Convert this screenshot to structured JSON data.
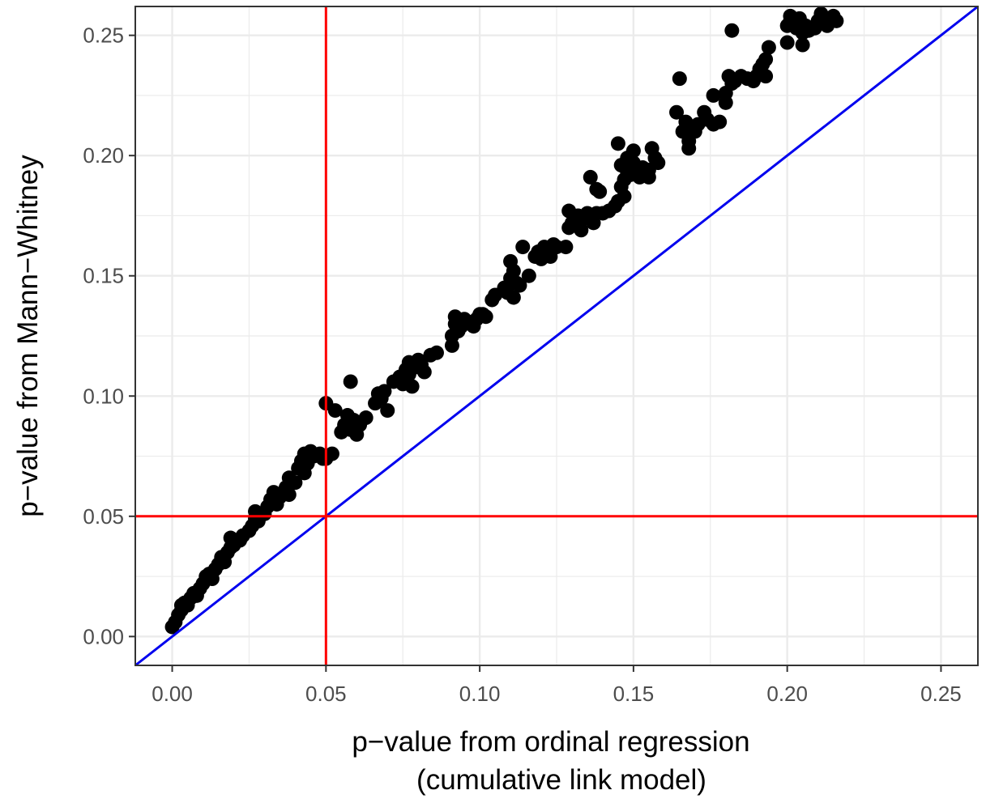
{
  "chart_data": {
    "type": "scatter",
    "title": "",
    "xlabel": "p−value from ordinal regression",
    "xlabel_line2": "(cumulative link model)",
    "ylabel": "p−value from Mann−Whitney",
    "xlim": [
      -0.012,
      0.262
    ],
    "ylim": [
      -0.012,
      0.262
    ],
    "xticks": [
      0.0,
      0.05,
      0.1,
      0.15,
      0.2,
      0.25
    ],
    "yticks": [
      0.0,
      0.05,
      0.1,
      0.15,
      0.2,
      0.25
    ],
    "xtick_labels": [
      "0.00",
      "0.05",
      "0.10",
      "0.15",
      "0.20",
      "0.25"
    ],
    "ytick_labels": [
      "0.00",
      "0.05",
      "0.10",
      "0.15",
      "0.20",
      "0.25"
    ],
    "grid": true,
    "reference_lines": {
      "vertical_x": 0.05,
      "horizontal_y": 0.05,
      "identity": true,
      "threshold_color": "#ff0000",
      "identity_color": "#0000ee"
    },
    "point_color": "#000000",
    "points": [
      [
        0.0,
        0.004
      ],
      [
        0.001,
        0.006
      ],
      [
        0.002,
        0.009
      ],
      [
        0.003,
        0.011
      ],
      [
        0.003,
        0.013
      ],
      [
        0.004,
        0.014
      ],
      [
        0.005,
        0.013
      ],
      [
        0.006,
        0.016
      ],
      [
        0.007,
        0.018
      ],
      [
        0.008,
        0.017
      ],
      [
        0.009,
        0.02
      ],
      [
        0.01,
        0.022
      ],
      [
        0.011,
        0.025
      ],
      [
        0.012,
        0.026
      ],
      [
        0.013,
        0.024
      ],
      [
        0.014,
        0.028
      ],
      [
        0.015,
        0.03
      ],
      [
        0.016,
        0.033
      ],
      [
        0.017,
        0.031
      ],
      [
        0.018,
        0.035
      ],
      [
        0.019,
        0.037
      ],
      [
        0.019,
        0.041
      ],
      [
        0.02,
        0.038
      ],
      [
        0.022,
        0.04
      ],
      [
        0.023,
        0.042
      ],
      [
        0.025,
        0.044
      ],
      [
        0.026,
        0.046
      ],
      [
        0.027,
        0.049
      ],
      [
        0.027,
        0.052
      ],
      [
        0.028,
        0.048
      ],
      [
        0.03,
        0.051
      ],
      [
        0.031,
        0.054
      ],
      [
        0.032,
        0.057
      ],
      [
        0.033,
        0.06
      ],
      [
        0.034,
        0.055
      ],
      [
        0.035,
        0.058
      ],
      [
        0.037,
        0.062
      ],
      [
        0.038,
        0.059
      ],
      [
        0.038,
        0.066
      ],
      [
        0.04,
        0.064
      ],
      [
        0.041,
        0.07
      ],
      [
        0.042,
        0.073
      ],
      [
        0.043,
        0.068
      ],
      [
        0.043,
        0.076
      ],
      [
        0.044,
        0.072
      ],
      [
        0.045,
        0.077
      ],
      [
        0.046,
        0.075
      ],
      [
        0.048,
        0.076
      ],
      [
        0.049,
        0.074
      ],
      [
        0.05,
        0.097
      ],
      [
        0.05,
        0.074
      ],
      [
        0.052,
        0.076
      ],
      [
        0.053,
        0.094
      ],
      [
        0.055,
        0.085
      ],
      [
        0.056,
        0.088
      ],
      [
        0.057,
        0.092
      ],
      [
        0.058,
        0.086
      ],
      [
        0.058,
        0.106
      ],
      [
        0.059,
        0.09
      ],
      [
        0.06,
        0.084
      ],
      [
        0.061,
        0.088
      ],
      [
        0.063,
        0.091
      ],
      [
        0.066,
        0.097
      ],
      [
        0.067,
        0.101
      ],
      [
        0.068,
        0.099
      ],
      [
        0.069,
        0.102
      ],
      [
        0.07,
        0.094
      ],
      [
        0.072,
        0.106
      ],
      [
        0.074,
        0.108
      ],
      [
        0.075,
        0.105
      ],
      [
        0.076,
        0.111
      ],
      [
        0.077,
        0.109
      ],
      [
        0.077,
        0.114
      ],
      [
        0.078,
        0.104
      ],
      [
        0.079,
        0.112
      ],
      [
        0.08,
        0.115
      ],
      [
        0.081,
        0.113
      ],
      [
        0.082,
        0.11
      ],
      [
        0.084,
        0.117
      ],
      [
        0.086,
        0.118
      ],
      [
        0.091,
        0.121
      ],
      [
        0.091,
        0.125
      ],
      [
        0.092,
        0.13
      ],
      [
        0.092,
        0.133
      ],
      [
        0.093,
        0.127
      ],
      [
        0.094,
        0.129
      ],
      [
        0.095,
        0.132
      ],
      [
        0.096,
        0.131
      ],
      [
        0.097,
        0.13
      ],
      [
        0.098,
        0.129
      ],
      [
        0.099,
        0.132
      ],
      [
        0.1,
        0.134
      ],
      [
        0.101,
        0.134
      ],
      [
        0.102,
        0.133
      ],
      [
        0.104,
        0.14
      ],
      [
        0.105,
        0.142
      ],
      [
        0.108,
        0.145
      ],
      [
        0.109,
        0.143
      ],
      [
        0.11,
        0.149
      ],
      [
        0.11,
        0.156
      ],
      [
        0.111,
        0.141
      ],
      [
        0.111,
        0.152
      ],
      [
        0.112,
        0.147
      ],
      [
        0.113,
        0.146
      ],
      [
        0.114,
        0.162
      ],
      [
        0.116,
        0.15
      ],
      [
        0.118,
        0.158
      ],
      [
        0.119,
        0.16
      ],
      [
        0.12,
        0.157
      ],
      [
        0.121,
        0.162
      ],
      [
        0.122,
        0.16
      ],
      [
        0.123,
        0.158
      ],
      [
        0.124,
        0.163
      ],
      [
        0.125,
        0.162
      ],
      [
        0.128,
        0.162
      ],
      [
        0.129,
        0.17
      ],
      [
        0.129,
        0.177
      ],
      [
        0.13,
        0.172
      ],
      [
        0.131,
        0.173
      ],
      [
        0.132,
        0.175
      ],
      [
        0.133,
        0.169
      ],
      [
        0.134,
        0.174
      ],
      [
        0.135,
        0.176
      ],
      [
        0.136,
        0.174
      ],
      [
        0.136,
        0.191
      ],
      [
        0.137,
        0.172
      ],
      [
        0.138,
        0.186
      ],
      [
        0.138,
        0.176
      ],
      [
        0.139,
        0.185
      ],
      [
        0.14,
        0.176
      ],
      [
        0.142,
        0.177
      ],
      [
        0.144,
        0.179
      ],
      [
        0.145,
        0.181
      ],
      [
        0.145,
        0.205
      ],
      [
        0.146,
        0.187
      ],
      [
        0.146,
        0.196
      ],
      [
        0.147,
        0.183
      ],
      [
        0.147,
        0.19
      ],
      [
        0.148,
        0.193
      ],
      [
        0.148,
        0.199
      ],
      [
        0.149,
        0.192
      ],
      [
        0.15,
        0.197
      ],
      [
        0.15,
        0.202
      ],
      [
        0.151,
        0.194
      ],
      [
        0.152,
        0.191
      ],
      [
        0.153,
        0.195
      ],
      [
        0.154,
        0.192
      ],
      [
        0.155,
        0.191
      ],
      [
        0.155,
        0.194
      ],
      [
        0.156,
        0.203
      ],
      [
        0.157,
        0.199
      ],
      [
        0.158,
        0.197
      ],
      [
        0.164,
        0.218
      ],
      [
        0.165,
        0.232
      ],
      [
        0.166,
        0.21
      ],
      [
        0.167,
        0.214
      ],
      [
        0.168,
        0.203
      ],
      [
        0.168,
        0.206
      ],
      [
        0.169,
        0.212
      ],
      [
        0.17,
        0.21
      ],
      [
        0.171,
        0.213
      ],
      [
        0.173,
        0.218
      ],
      [
        0.174,
        0.215
      ],
      [
        0.176,
        0.213
      ],
      [
        0.176,
        0.225
      ],
      [
        0.178,
        0.214
      ],
      [
        0.18,
        0.222
      ],
      [
        0.18,
        0.226
      ],
      [
        0.181,
        0.233
      ],
      [
        0.182,
        0.23
      ],
      [
        0.182,
        0.252
      ],
      [
        0.183,
        0.231
      ],
      [
        0.185,
        0.233
      ],
      [
        0.187,
        0.232
      ],
      [
        0.189,
        0.231
      ],
      [
        0.19,
        0.233
      ],
      [
        0.191,
        0.236
      ],
      [
        0.192,
        0.238
      ],
      [
        0.193,
        0.233
      ],
      [
        0.193,
        0.24
      ],
      [
        0.194,
        0.245
      ],
      [
        0.2,
        0.247
      ],
      [
        0.2,
        0.254
      ],
      [
        0.201,
        0.256
      ],
      [
        0.201,
        0.258
      ],
      [
        0.202,
        0.255
      ],
      [
        0.203,
        0.253
      ],
      [
        0.204,
        0.257
      ],
      [
        0.205,
        0.246
      ],
      [
        0.205,
        0.251
      ],
      [
        0.206,
        0.254
      ],
      [
        0.207,
        0.252
      ],
      [
        0.209,
        0.253
      ],
      [
        0.21,
        0.256
      ],
      [
        0.211,
        0.259
      ],
      [
        0.212,
        0.255
      ],
      [
        0.213,
        0.254
      ],
      [
        0.214,
        0.257
      ],
      [
        0.215,
        0.258
      ],
      [
        0.216,
        0.256
      ]
    ]
  }
}
